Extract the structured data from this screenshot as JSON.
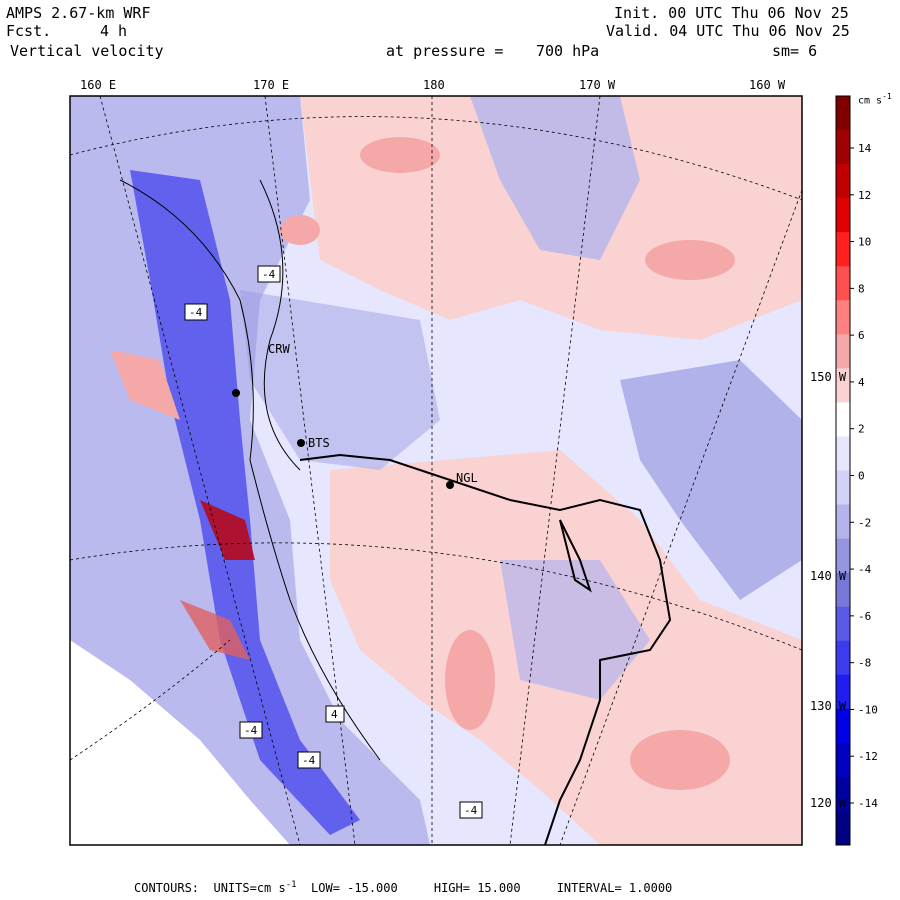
{
  "header": {
    "model": "AMPS 2.67-km WRF",
    "fcst_label": "Fcst.",
    "fcst_value": "4 h",
    "field": "Vertical velocity",
    "init": "Init. 00 UTC Thu 06 Nov 25",
    "valid": "Valid. 04 UTC Thu 06 Nov 25",
    "pressure_label": "at pressure =",
    "pressure_value": "700 hPa",
    "smoothing": "sm= 6"
  },
  "longitude_labels": [
    "160 E",
    "170 E",
    "180",
    "170 W",
    "160 W"
  ],
  "latitude_labels": [
    "150 W",
    "140 W",
    "130 W",
    "120 W"
  ],
  "stations": [
    "CRW",
    "BTS",
    "NGL"
  ],
  "contour_box_labels": [
    "-4",
    "-4",
    "-4",
    "-4",
    "4",
    "-4"
  ],
  "colorbar": {
    "units": "cm s",
    "units_exp": "-1",
    "ticks": [
      "14",
      "12",
      "10",
      "8",
      "6",
      "4",
      "2",
      "0",
      "-2",
      "-4",
      "-6",
      "-8",
      "-10",
      "-12",
      "-14"
    ],
    "colors": [
      "#800000",
      "#a00000",
      "#c00000",
      "#e00000",
      "#ff2020",
      "#ff5050",
      "#ff8080",
      "#f4a8a8",
      "#fad2d2",
      "#ffffff",
      "#e6e6ff",
      "#d2d2f8",
      "#b4b4ec",
      "#9696e0",
      "#7878d8",
      "#5a5ae6",
      "#3c3cee",
      "#1e1ef0",
      "#0000e6",
      "#0000c0",
      "#0000a0",
      "#000080"
    ]
  },
  "footer": {
    "contours": "CONTOURS:",
    "units_label": "UNITS=cm s",
    "units_exp": "-1",
    "low": "LOW= -15.000",
    "high": "HIGH= 15.000",
    "interval": "INTERVAL= 1.0000"
  }
}
